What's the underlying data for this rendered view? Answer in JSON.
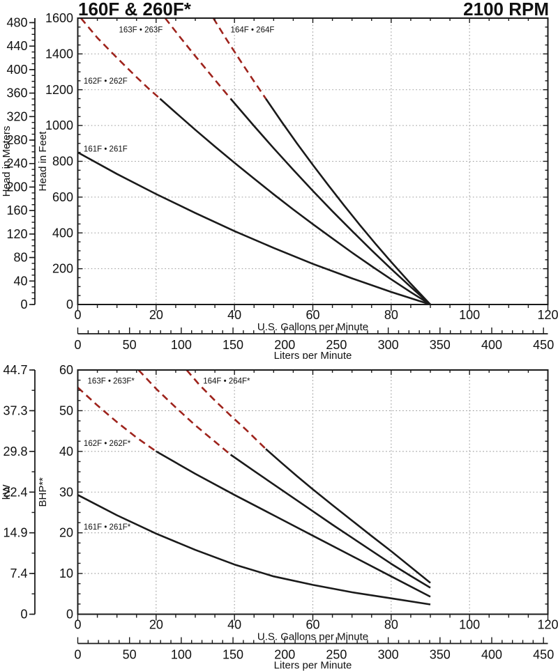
{
  "title_left": "160F & 260F*",
  "title_right": "2100 RPM",
  "colors": {
    "curve": "#1a1a1a",
    "dashed_curve": "#9e231c",
    "grid": "#999999",
    "axis": "#1a1a1a",
    "text": "#111111"
  },
  "chart_data": [
    {
      "type": "line",
      "name": "head-curves",
      "xlabel": "U.S. Gallons per Minute",
      "x2label": "Liters per Minute",
      "ylabel": "Head in Feet",
      "y2label": "Head in Meters",
      "xlim": [
        0,
        120
      ],
      "x_major": 20,
      "x_minor": 5,
      "ylim": [
        0,
        1600
      ],
      "y_major": 200,
      "y_minor": 50,
      "x2lim": [
        0,
        450
      ],
      "x2_major": 50,
      "x2_minor": 10,
      "liters_per_gallon": 3.7854,
      "y2_minor": 32.81,
      "y2_ticks": [
        [
          0,
          "0"
        ],
        [
          131.2,
          "40"
        ],
        [
          262.5,
          "80"
        ],
        [
          393.7,
          "120"
        ],
        [
          524.9,
          "160"
        ],
        [
          656.2,
          "200"
        ],
        [
          787.4,
          "240"
        ],
        [
          918.6,
          "280"
        ],
        [
          1049.9,
          "320"
        ],
        [
          1181.1,
          "360"
        ],
        [
          1312.3,
          "400"
        ],
        [
          1443.6,
          "440"
        ],
        [
          1574.8,
          "480"
        ]
      ],
      "grid": true,
      "series": [
        {
          "id": "161f-261f",
          "name": "161F • 261F",
          "solid": [
            [
              0,
              850
            ],
            [
              10,
              729
            ],
            [
              20,
              617
            ],
            [
              30,
              511
            ],
            [
              40,
              410
            ],
            [
              50,
              316
            ],
            [
              60,
              227
            ],
            [
              70,
              146
            ],
            [
              80,
              70
            ],
            [
              90,
              0
            ]
          ]
        },
        {
          "id": "162f-262f",
          "name": "162F • 262F",
          "dashed": [
            [
              0.8,
              1600
            ],
            [
              5,
              1490
            ],
            [
              10,
              1378
            ],
            [
              15,
              1270
            ],
            [
              18,
              1208
            ],
            [
              21,
              1150
            ]
          ],
          "solid": [
            [
              21,
              1150
            ],
            [
              25,
              1072
            ],
            [
              30,
              976
            ],
            [
              35,
              883
            ],
            [
              40,
              792
            ],
            [
              45,
              703
            ],
            [
              50,
              616
            ],
            [
              55,
              531
            ],
            [
              60,
              449
            ],
            [
              65,
              369
            ],
            [
              70,
              290
            ],
            [
              75,
              214
            ],
            [
              80,
              141
            ],
            [
              85,
              69
            ],
            [
              90,
              0
            ]
          ]
        },
        {
          "id": "163f-263f",
          "name": "163F • 263F",
          "dashed": [
            [
              22.3,
              1600
            ],
            [
              26,
              1497
            ],
            [
              30,
              1388
            ],
            [
              35,
              1255
            ],
            [
              39,
              1150
            ]
          ],
          "solid": [
            [
              39,
              1150
            ],
            [
              45,
              997
            ],
            [
              50,
              873
            ],
            [
              55,
              753
            ],
            [
              60,
              635
            ],
            [
              65,
              521
            ],
            [
              70,
              411
            ],
            [
              75,
              303
            ],
            [
              80,
              199
            ],
            [
              85,
              98
            ],
            [
              90,
              0
            ]
          ]
        },
        {
          "id": "164f-264f",
          "name": "164F • 264F",
          "dashed": [
            [
              34.6,
              1600
            ],
            [
              38,
              1480
            ],
            [
              42,
              1345
            ],
            [
              45,
              1246
            ],
            [
              48,
              1150
            ]
          ],
          "solid": [
            [
              48,
              1150
            ],
            [
              52,
              1022
            ],
            [
              56,
              899
            ],
            [
              60,
              780
            ],
            [
              64,
              665
            ],
            [
              68,
              553
            ],
            [
              72,
              444
            ],
            [
              76,
              339
            ],
            [
              80,
              238
            ],
            [
              85,
              116
            ],
            [
              90,
              0
            ]
          ]
        }
      ],
      "labels": [
        {
          "text": "163F • 263F",
          "x": 10.5,
          "y": 1520
        },
        {
          "text": "164F • 264F",
          "x": 39,
          "y": 1520
        },
        {
          "text": "162F • 262F",
          "x": 1.5,
          "y": 1235
        },
        {
          "text": "161F • 261F",
          "x": 1.5,
          "y": 855
        }
      ]
    },
    {
      "type": "line",
      "name": "power-curves",
      "xlabel": "U.S. Gallons per Minute",
      "x2label": "Liters per Minute",
      "ylabel": "BHP**",
      "y2label": "kW",
      "xlim": [
        0,
        120
      ],
      "x_major": 20,
      "x_minor": 5,
      "ylim": [
        0,
        60
      ],
      "y_major": 10,
      "y_minor": 2.5,
      "x2lim": [
        0,
        450
      ],
      "x2_major": 50,
      "x2_minor": 10,
      "liters_per_gallon": 3.7854,
      "y2_minor": 5,
      "y2_ticks": [
        [
          0,
          "0"
        ],
        [
          10,
          "7.4"
        ],
        [
          20,
          "14.9"
        ],
        [
          30,
          "22.4"
        ],
        [
          40,
          "29.8"
        ],
        [
          50,
          "37.3"
        ],
        [
          60,
          "44.7"
        ]
      ],
      "grid": true,
      "series": [
        {
          "id": "161f-261f",
          "name": "161F • 261F*",
          "solid": [
            [
              0,
              29.3
            ],
            [
              10,
              24.3
            ],
            [
              20,
              19.8
            ],
            [
              30,
              15.8
            ],
            [
              40,
              12.2
            ],
            [
              50,
              9.3
            ],
            [
              60,
              7.2
            ],
            [
              70,
              5.4
            ],
            [
              80,
              3.9
            ],
            [
              90,
              2.4
            ]
          ]
        },
        {
          "id": "162f-262f",
          "name": "162F • 262F*",
          "dashed": [
            [
              0,
              55.7
            ],
            [
              5,
              51.3
            ],
            [
              10,
              47.2
            ],
            [
              15,
              43.4
            ],
            [
              20,
              40
            ]
          ],
          "solid": [
            [
              20,
              40
            ],
            [
              30,
              34.5
            ],
            [
              40,
              29.3
            ],
            [
              50,
              24.3
            ],
            [
              60,
              19.3
            ],
            [
              70,
              14.3
            ],
            [
              80,
              9.3
            ],
            [
              90,
              4.3
            ]
          ]
        },
        {
          "id": "163f-263f",
          "name": "163F • 263F*",
          "dashed": [
            [
              15.5,
              60
            ],
            [
              20,
              55.4
            ],
            [
              25,
              50.8
            ],
            [
              30,
              46.4
            ],
            [
              35,
              42.4
            ],
            [
              39,
              39.2
            ]
          ],
          "solid": [
            [
              39,
              39.2
            ],
            [
              45,
              35.2
            ],
            [
              50,
              31.9
            ],
            [
              55,
              28.6
            ],
            [
              60,
              25.3
            ],
            [
              65,
              22
            ],
            [
              70,
              18.8
            ],
            [
              75,
              15.6
            ],
            [
              80,
              12.4
            ],
            [
              85,
              9.4
            ],
            [
              90,
              6.5
            ]
          ]
        },
        {
          "id": "164f-264f",
          "name": "164F • 264F*",
          "dashed": [
            [
              27.8,
              60
            ],
            [
              31,
              56.4
            ],
            [
              35,
              52.5
            ],
            [
              39,
              48.8
            ],
            [
              43,
              45.3
            ],
            [
              48,
              40.6
            ]
          ],
          "solid": [
            [
              48,
              40.6
            ],
            [
              52,
              37.2
            ],
            [
              56,
              33.9
            ],
            [
              60,
              30.7
            ],
            [
              65,
              26.8
            ],
            [
              70,
              23
            ],
            [
              75,
              19.2
            ],
            [
              80,
              15.5
            ],
            [
              85,
              11.6
            ],
            [
              90,
              7.7
            ]
          ]
        }
      ],
      "labels": [
        {
          "text": "163F • 263F*",
          "x": 2.5,
          "y": 56.7
        },
        {
          "text": "164F • 264F*",
          "x": 32,
          "y": 56.7
        },
        {
          "text": "162F • 262F*",
          "x": 1.5,
          "y": 41.3
        },
        {
          "text": "161F • 261F*",
          "x": 1.5,
          "y": 20.8
        }
      ]
    }
  ]
}
